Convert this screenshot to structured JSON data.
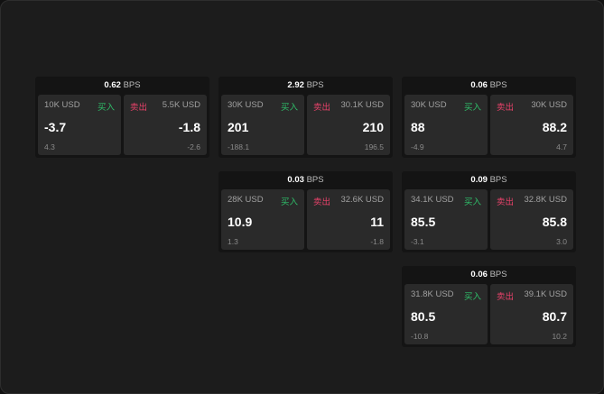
{
  "colors": {
    "buy": "#2fbf6a",
    "sell": "#e8426a",
    "background": "#1c1c1c"
  },
  "labels": {
    "buy": "买入",
    "sell": "卖出",
    "unit": "BPS"
  },
  "widgets": [
    {
      "spread": "0.62",
      "bid": {
        "size": "10K USD",
        "price": "-3.7",
        "change": "4.3"
      },
      "ask": {
        "size": "5.5K USD",
        "price": "-1.8",
        "change": "-2.6"
      }
    },
    {
      "spread": "2.92",
      "bid": {
        "size": "30K USD",
        "price": "201",
        "change": "-188.1"
      },
      "ask": {
        "size": "30.1K USD",
        "price": "210",
        "change": "196.5"
      }
    },
    {
      "spread": "0.06",
      "bid": {
        "size": "30K USD",
        "price": "88",
        "change": "-4.9"
      },
      "ask": {
        "size": "30K USD",
        "price": "88.2",
        "change": "4.7"
      }
    },
    {
      "spread": "0.03",
      "bid": {
        "size": "28K USD",
        "price": "10.9",
        "change": "1.3"
      },
      "ask": {
        "size": "32.6K USD",
        "price": "11",
        "change": "-1.8"
      }
    },
    {
      "spread": "0.09",
      "bid": {
        "size": "34.1K USD",
        "price": "85.5",
        "change": "-3.1"
      },
      "ask": {
        "size": "32.8K USD",
        "price": "85.8",
        "change": "3.0"
      }
    },
    {
      "spread": "0.06",
      "bid": {
        "size": "31.8K USD",
        "price": "80.5",
        "change": "-10.8"
      },
      "ask": {
        "size": "39.1K USD",
        "price": "80.7",
        "change": "10.2"
      }
    }
  ]
}
